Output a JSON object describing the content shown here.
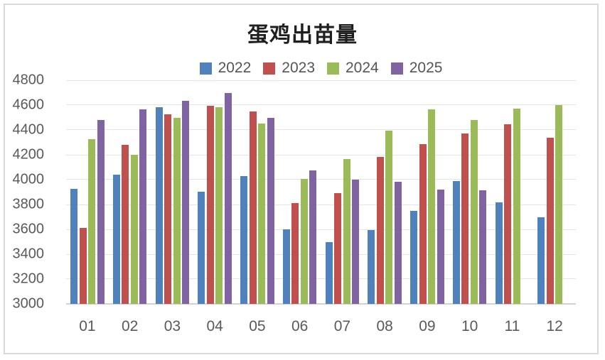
{
  "chart_data": {
    "type": "bar",
    "title": "蛋鸡出苗量",
    "categories": [
      "01",
      "02",
      "03",
      "04",
      "05",
      "06",
      "07",
      "08",
      "09",
      "10",
      "11",
      "12"
    ],
    "series": [
      {
        "name": "2022",
        "color": "#4F81BD",
        "values": [
          3925,
          4040,
          4585,
          3905,
          4030,
          3600,
          3495,
          3595,
          3750,
          3990,
          3815,
          3700
        ]
      },
      {
        "name": "2023",
        "color": "#C0504D",
        "values": [
          3610,
          4280,
          4525,
          4595,
          4550,
          3810,
          3890,
          4185,
          4285,
          4370,
          4445,
          4335
        ]
      },
      {
        "name": "2024",
        "color": "#9BBB59",
        "values": [
          4325,
          4200,
          4500,
          4585,
          4450,
          4005,
          4165,
          4395,
          4565,
          4480,
          4570,
          4600
        ]
      },
      {
        "name": "2025",
        "color": "#8064A2",
        "values": [
          4480,
          4565,
          4635,
          4700,
          4500,
          4075,
          4000,
          3985,
          3920,
          3915,
          null,
          null
        ]
      }
    ],
    "ylim": [
      3000,
      4800
    ],
    "ytick_step": 200,
    "grid": true,
    "legend_position": "top-center",
    "axis_label_color": "#595959",
    "gridline_color": "#e4e4e4",
    "baseline_color": "#d2d2d2",
    "frame_border_color": "#d9d9d9",
    "background_color": "#ffffff"
  }
}
